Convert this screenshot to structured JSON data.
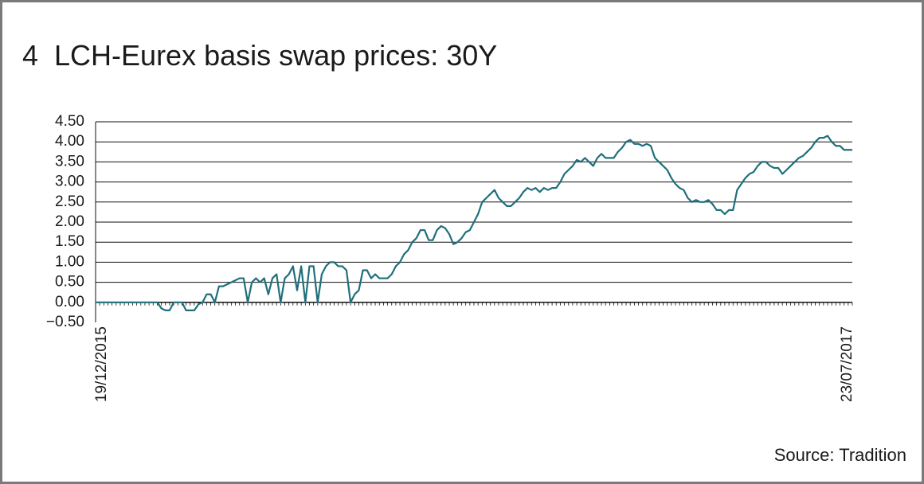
{
  "chart_data": {
    "type": "line",
    "title": "4  LCH-Eurex basis swap prices: 30Y",
    "source": "Source: Tradition",
    "color": "#1f6f7b",
    "grid": true,
    "ylim": [
      -0.5,
      4.5
    ],
    "yticks": [
      {
        "value": -0.5,
        "label": "−0.50"
      },
      {
        "value": 0,
        "label": "0.00"
      },
      {
        "value": 0.5,
        "label": "0.50"
      },
      {
        "value": 1,
        "label": "1.00"
      },
      {
        "value": 1.5,
        "label": "1.50"
      },
      {
        "value": 2,
        "label": "2.00"
      },
      {
        "value": 2.5,
        "label": "2.50"
      },
      {
        "value": 3,
        "label": "3.00"
      },
      {
        "value": 3.5,
        "label": "3.50"
      },
      {
        "value": 4,
        "label": "4.00"
      },
      {
        "value": 4.5,
        "label": "4.50"
      }
    ],
    "categories": [
      "19/12/2015",
      null,
      null,
      null,
      null,
      null,
      null,
      null,
      null,
      null,
      null,
      null,
      null,
      null,
      null,
      null,
      null,
      null,
      null,
      null,
      null,
      null,
      null,
      null,
      null,
      null,
      null,
      null,
      null,
      null,
      null,
      null,
      null,
      null,
      null,
      null,
      null,
      null,
      null,
      null,
      null,
      null,
      null,
      null,
      null,
      null,
      null,
      null,
      null,
      null,
      null,
      null,
      null,
      null,
      null,
      null,
      null,
      null,
      null,
      null,
      null,
      null,
      null,
      null,
      null,
      null,
      null,
      null,
      null,
      null,
      null,
      null,
      null,
      null,
      null,
      null,
      null,
      null,
      null,
      null,
      null,
      null,
      null,
      null,
      null,
      null,
      null,
      null,
      null,
      null,
      null,
      null,
      null,
      null,
      null,
      null,
      null,
      null,
      null,
      null,
      null,
      null,
      null,
      null,
      null,
      null,
      null,
      null,
      null,
      null,
      null,
      null,
      null,
      null,
      null,
      null,
      null,
      null,
      null,
      null,
      null,
      null,
      null,
      null,
      null,
      null,
      null,
      null,
      null,
      null,
      null,
      null,
      null,
      null,
      null,
      null,
      null,
      null,
      null,
      null,
      null,
      null,
      null,
      null,
      null,
      null,
      null,
      null,
      null,
      null,
      null,
      null,
      null,
      null,
      null,
      null,
      null,
      null,
      null,
      null,
      null,
      null,
      null,
      null,
      null,
      null,
      null,
      null,
      null,
      null,
      null,
      null,
      null,
      null,
      null,
      null,
      null,
      null,
      null,
      null,
      null,
      null,
      null,
      null,
      "23/07/2017"
    ],
    "values": [
      0,
      0,
      0,
      0,
      0,
      0,
      0,
      0,
      0,
      0,
      0,
      0,
      0,
      0,
      0,
      0,
      -0.15,
      -0.2,
      -0.2,
      0,
      0,
      0,
      -0.2,
      -0.2,
      -0.2,
      -0.05,
      0,
      0.2,
      0.2,
      0,
      0.4,
      0.4,
      0.45,
      0.5,
      0.55,
      0.6,
      0.6,
      0,
      0.5,
      0.6,
      0.5,
      0.6,
      0.2,
      0.6,
      0.7,
      0,
      0.6,
      0.7,
      0.9,
      0.3,
      0.9,
      0,
      0.9,
      0.9,
      0,
      0.7,
      0.9,
      1.0,
      1.0,
      0.9,
      0.9,
      0.8,
      0,
      0.2,
      0.3,
      0.8,
      0.8,
      0.6,
      0.7,
      0.6,
      0.6,
      0.6,
      0.7,
      0.9,
      1.0,
      1.2,
      1.3,
      1.5,
      1.6,
      1.8,
      1.8,
      1.55,
      1.55,
      1.8,
      1.9,
      1.85,
      1.7,
      1.45,
      1.5,
      1.6,
      1.75,
      1.8,
      2.0,
      2.2,
      2.5,
      2.6,
      2.7,
      2.8,
      2.6,
      2.5,
      2.4,
      2.4,
      2.5,
      2.6,
      2.75,
      2.85,
      2.8,
      2.85,
      2.75,
      2.85,
      2.8,
      2.85,
      2.85,
      3.0,
      3.2,
      3.3,
      3.4,
      3.55,
      3.5,
      3.6,
      3.5,
      3.4,
      3.6,
      3.7,
      3.6,
      3.6,
      3.6,
      3.75,
      3.85,
      4.0,
      4.05,
      3.95,
      3.95,
      3.9,
      3.95,
      3.9,
      3.6,
      3.5,
      3.4,
      3.3,
      3.1,
      2.95,
      2.85,
      2.8,
      2.6,
      2.5,
      2.55,
      2.5,
      2.5,
      2.55,
      2.45,
      2.3,
      2.3,
      2.2,
      2.3,
      2.3,
      2.8,
      2.95,
      3.1,
      3.2,
      3.25,
      3.4,
      3.5,
      3.5,
      3.4,
      3.35,
      3.35,
      3.2,
      3.3,
      3.4,
      3.5,
      3.6,
      3.65,
      3.75,
      3.85,
      4.0,
      4.1,
      4.1,
      4.15,
      4.0,
      3.9,
      3.9,
      3.8,
      3.8,
      3.8
    ]
  }
}
